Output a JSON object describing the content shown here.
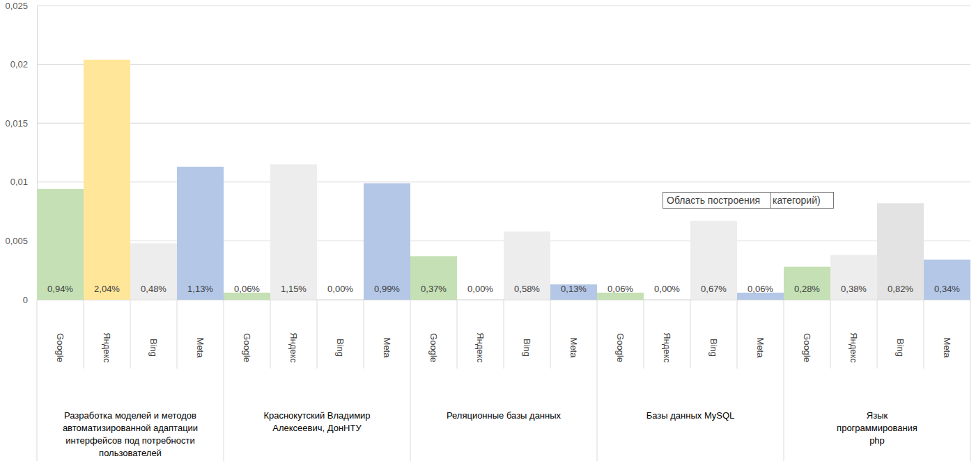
{
  "chart_data": {
    "type": "bar",
    "categories": [
      "Google",
      "Яндекс",
      "Bing",
      "Meta",
      "Google",
      "Яндекс",
      "Bing",
      "Meta",
      "Google",
      "Яндекс",
      "Bing",
      "Meta",
      "Google",
      "Яндекс",
      "Bing",
      "Meta",
      "Google",
      "Яндекс",
      "Bing",
      "Meta"
    ],
    "group_labels": [
      [
        "Разработка моделей и методов",
        "автоматизированной адаптации",
        "интерфейсов под потребности",
        "пользователей"
      ],
      [
        "Краснокутский Владимир",
        "Алексеевич, ДонНТУ"
      ],
      [
        "Реляционные базы данных"
      ],
      [
        "Базы данных MySQL"
      ],
      [
        "Язык",
        "программирования",
        "php"
      ]
    ],
    "values": [
      0.0094,
      0.0204,
      0.0048,
      0.0113,
      0.0006,
      0.0115,
      0.0,
      0.0099,
      0.0037,
      0.0,
      0.0058,
      0.0013,
      0.0006,
      0.0,
      0.0067,
      0.0006,
      0.0028,
      0.0038,
      0.0082,
      0.0034
    ],
    "value_labels": [
      "0,94%",
      "2,04%",
      "0,48%",
      "1,13%",
      "0,06%",
      "1,15%",
      "0,00%",
      "0,99%",
      "0,37%",
      "0,00%",
      "0,58%",
      "0,13%",
      "0,06%",
      "0,00%",
      "0,67%",
      "0,06%",
      "0,28%",
      "0,38%",
      "0,82%",
      "0,34%"
    ],
    "colors": [
      "#c5e0b4",
      "#ffe699",
      "#ededed",
      "#b4c7e7",
      "#c5e0b4",
      "#ededed",
      "#ededed",
      "#b4c7e7",
      "#c5e0b4",
      "#ededed",
      "#ededed",
      "#b4c7e7",
      "#c5e0b4",
      "#ededed",
      "#ededed",
      "#b4c7e7",
      "#c5e0b4",
      "#ededed",
      "#e3e3e3",
      "#b4c7e7"
    ],
    "ylim": [
      0,
      0.025
    ],
    "yticks": [
      0,
      {
        "value": 0.005,
        "label": "0,005"
      },
      {
        "value": 0.01,
        "label": "0,01"
      },
      {
        "value": 0.015,
        "label": "0,015"
      },
      {
        "value": 0.02,
        "label": "0,02"
      },
      {
        "value": 0.025,
        "label": "0,025"
      }
    ],
    "grid": true,
    "annotations": [
      "Область построения",
      "категорий)"
    ]
  }
}
